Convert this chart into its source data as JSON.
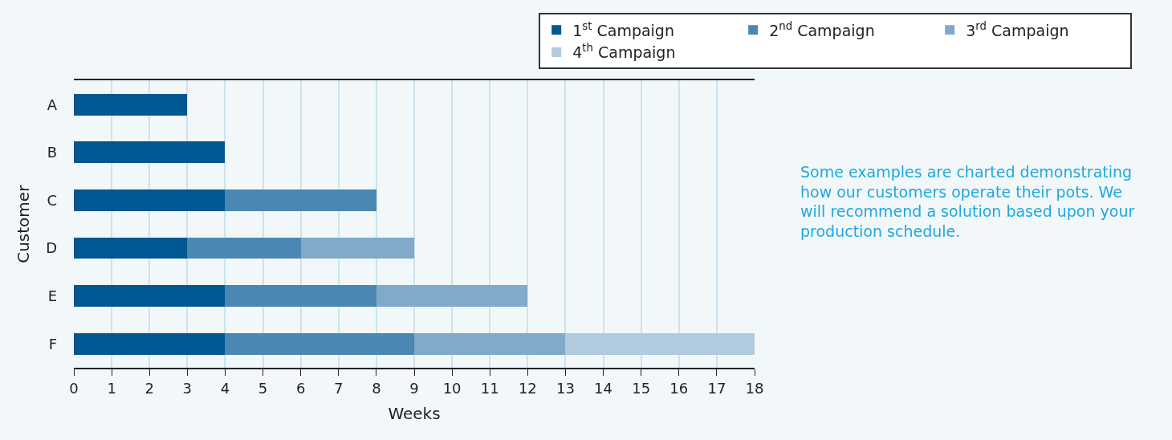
{
  "chart_data": {
    "type": "bar",
    "orientation": "horizontal",
    "stacked": true,
    "categories": [
      "A",
      "B",
      "C",
      "D",
      "E",
      "F"
    ],
    "series": [
      {
        "name": "1$^{st}$ Campaign",
        "color": "#005893",
        "values": [
          3,
          4,
          4,
          3,
          4,
          4
        ]
      },
      {
        "name": "2$^{nd}$ Campaign",
        "color": "#4b87b3",
        "values": [
          null,
          null,
          4,
          3,
          4,
          5
        ]
      },
      {
        "name": "3$^{rd}$ Campaign",
        "color": "#80a9ca",
        "values": [
          null,
          null,
          null,
          3,
          4,
          4
        ]
      },
      {
        "name": "4$^{th}$ Campaign",
        "color": "#b2cade",
        "values": [
          null,
          null,
          null,
          null,
          null,
          5
        ]
      }
    ],
    "xlim": [
      0,
      18
    ],
    "xticks": [
      0,
      1,
      2,
      3,
      4,
      5,
      6,
      7,
      8,
      9,
      10,
      11,
      12,
      13,
      14,
      15,
      16,
      17,
      18
    ],
    "xlabel": "Weeks",
    "ylabel": "Customer",
    "grid": "x",
    "legend": "top right",
    "annotations": [
      "Some examples are charted demonstrating how our customers operate their pots. We will recommend a solution based upon your production schedule."
    ]
  }
}
